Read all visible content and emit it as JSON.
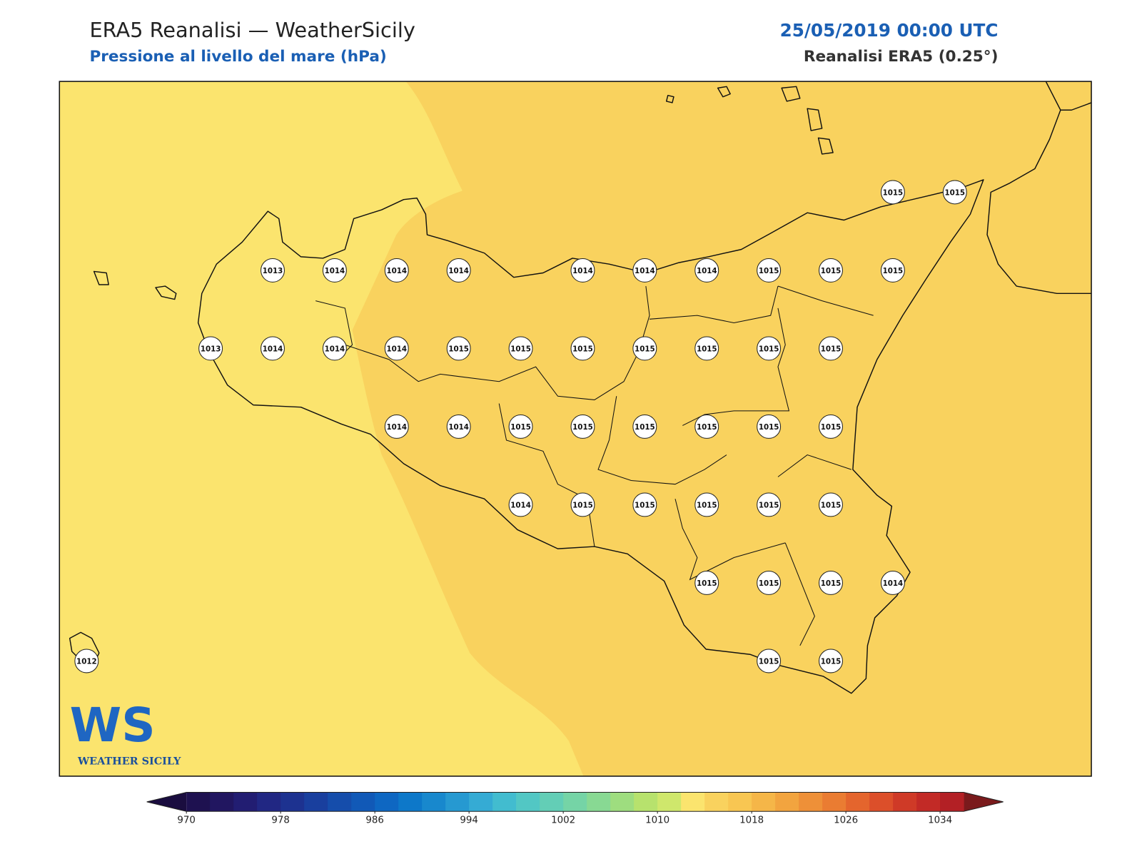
{
  "header": {
    "title": "ERA5 Reanalisi — WeatherSicily",
    "subtitle": "Pressione al livello del mare (hPa)",
    "datetime": "25/05/2019 00:00 UTC",
    "source": "Reanalisi ERA5 (0.25°)"
  },
  "stations": [
    1015,
    1015,
    1013,
    1014,
    1014,
    1014,
    1014,
    1014,
    1014,
    1015,
    1015,
    1015,
    1013,
    1014,
    1014,
    1014,
    1015,
    1015,
    1015,
    1015,
    1015,
    1015,
    1015,
    1014,
    1014,
    1015,
    1015,
    1015,
    1015,
    1015,
    1015,
    1014,
    1015,
    1015,
    1015,
    1015,
    1015,
    1015,
    1015,
    1015,
    1014,
    1012,
    1015,
    1015
  ],
  "colorbar": {
    "range": [
      970,
      1036
    ],
    "ticks": [
      970,
      978,
      986,
      994,
      1002,
      1010,
      1018,
      1026,
      1034
    ],
    "colors": [
      "#1e1150",
      "#211660",
      "#221d72",
      "#212783",
      "#1d3290",
      "#193f9e",
      "#154dab",
      "#1159b7",
      "#0e67c2",
      "#0d78c9",
      "#1888cd",
      "#2699d1",
      "#35abd4",
      "#42bccf",
      "#52c7c4",
      "#63ceb6",
      "#75d4a6",
      "#88d993",
      "#9edd7f",
      "#b7e26d",
      "#cfe76c",
      "#fbe46e",
      "#f9d25e",
      "#f8c652",
      "#f5b648",
      "#f2a43f",
      "#ee9038",
      "#ea7c32",
      "#e4652d",
      "#dc4f2a",
      "#cf3a27",
      "#c22a26",
      "#b32025"
    ],
    "under_color": "#1a0d3f",
    "over_color": "#7a1a1c"
  },
  "logo": {
    "mark": "WS",
    "name": "WEATHER SICILY"
  }
}
